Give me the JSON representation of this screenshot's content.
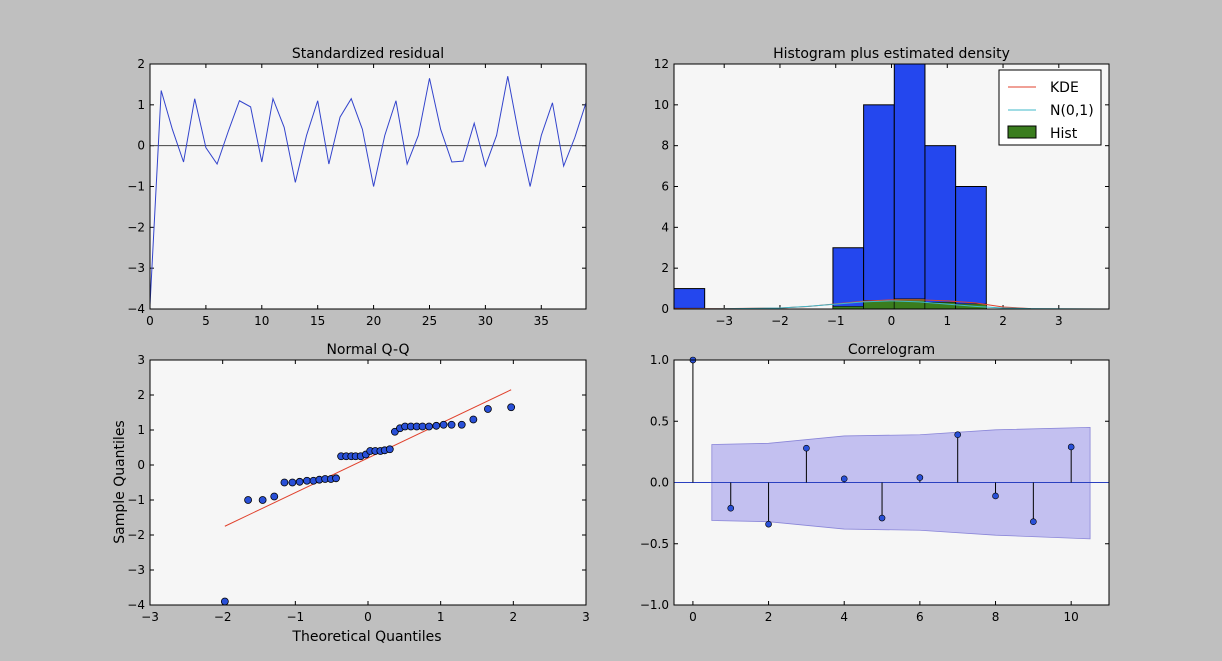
{
  "colors": {
    "figure_bg": "#bfbfbf",
    "axes_bg": "#f6f6f6",
    "residual_line": "#3344cc",
    "hist_bar": "#2447ee",
    "kde": "#e0412c",
    "normal": "#40b8c8",
    "hist_legend": "#3a7d1e",
    "qq_line": "#e0412c",
    "qq_marker": "#2950d8",
    "conf_band": "#c3c0f0",
    "acf_stem": "#000000",
    "acf_marker": "#2950d8",
    "zero_line": "#2a40c0"
  },
  "chart_data": [
    {
      "type": "line",
      "title": "Standardized residual",
      "xlim": [
        0,
        39
      ],
      "ylim": [
        -4,
        2
      ],
      "xticks": [
        0,
        5,
        10,
        15,
        20,
        25,
        30,
        35
      ],
      "xtick_labels": [
        "0",
        "5",
        "10",
        "15",
        "20",
        "25",
        "30",
        "35"
      ],
      "yticks": [
        -4,
        -3,
        -2,
        -1,
        0,
        1,
        2
      ],
      "ytick_labels": [
        "−4",
        "−3",
        "−2",
        "−1",
        "0",
        "1",
        "2"
      ],
      "hline": 0,
      "x": [
        0,
        1,
        2,
        3,
        4,
        5,
        6,
        7,
        8,
        9,
        10,
        11,
        12,
        13,
        14,
        15,
        16,
        17,
        18,
        19,
        20,
        21,
        22,
        23,
        24,
        25,
        26,
        27,
        28,
        29,
        30,
        31,
        32,
        33,
        34,
        35,
        36,
        37,
        38,
        39
      ],
      "y": [
        -3.9,
        1.35,
        0.4,
        -0.4,
        1.15,
        -0.05,
        -0.45,
        0.35,
        1.1,
        0.95,
        -0.4,
        1.15,
        0.45,
        -0.9,
        0.25,
        1.1,
        -0.45,
        0.7,
        1.15,
        0.4,
        -1.0,
        0.25,
        1.1,
        -0.45,
        0.25,
        1.65,
        0.4,
        -0.4,
        -0.38,
        0.55,
        -0.5,
        0.25,
        1.7,
        0.25,
        -1.0,
        0.25,
        1.05,
        -0.5,
        0.2,
        1.05
      ]
    },
    {
      "type": "bar",
      "title": "Histogram plus estimated density",
      "xlim": [
        -3.9,
        3.9
      ],
      "ylim": [
        0,
        12
      ],
      "xticks": [
        -3,
        -2,
        -1,
        0,
        1,
        2,
        3
      ],
      "xtick_labels": [
        "−3",
        "−2",
        "−1",
        "0",
        "1",
        "2",
        "3"
      ],
      "yticks": [
        0,
        2,
        4,
        6,
        8,
        10,
        12
      ],
      "ytick_labels": [
        "0",
        "2",
        "4",
        "6",
        "8",
        "10",
        "12"
      ],
      "bins": [
        {
          "x0": -3.9,
          "x1": -3.35,
          "value": 1
        },
        {
          "x0": -1.05,
          "x1": -0.5,
          "value": 3
        },
        {
          "x0": -0.5,
          "x1": 0.05,
          "value": 10
        },
        {
          "x0": 0.05,
          "x1": 0.6,
          "value": 12
        },
        {
          "x0": 0.6,
          "x1": 1.15,
          "value": 8
        },
        {
          "x0": 1.15,
          "x1": 1.7,
          "value": 6
        }
      ],
      "series": [
        {
          "name": "KDE",
          "x": [
            -3.9,
            -3,
            -2,
            -1.5,
            -1,
            -0.5,
            0,
            0.5,
            1,
            1.5,
            2,
            2.5
          ],
          "y": [
            0.02,
            0.02,
            0.05,
            0.12,
            0.25,
            0.38,
            0.45,
            0.45,
            0.4,
            0.3,
            0.1,
            0.02
          ]
        },
        {
          "name": "N(0,1)",
          "x": [
            -3.9,
            -3,
            -2,
            -1.5,
            -1,
            -0.5,
            0,
            0.5,
            1,
            1.5,
            2,
            2.5,
            3,
            3.9
          ],
          "y": [
            0,
            0.01,
            0.05,
            0.13,
            0.24,
            0.35,
            0.4,
            0.35,
            0.24,
            0.13,
            0.05,
            0.02,
            0.01,
            0
          ]
        }
      ],
      "legend": [
        "KDE",
        "N(0,1)",
        "Hist"
      ],
      "legend_loc": "top-right"
    },
    {
      "type": "scatter",
      "title": "Normal Q-Q",
      "xlabel": "Theoretical Quantiles",
      "ylabel": "Sample Quantiles",
      "xlim": [
        -3,
        3
      ],
      "ylim": [
        -4,
        3
      ],
      "xticks": [
        -3,
        -2,
        -1,
        0,
        1,
        2,
        3
      ],
      "xtick_labels": [
        "−3",
        "−2",
        "−1",
        "0",
        "1",
        "2",
        "3"
      ],
      "yticks": [
        -4,
        -3,
        -2,
        -1,
        0,
        1,
        2,
        3
      ],
      "ytick_labels": [
        "−4",
        "−3",
        "−2",
        "−1",
        "0",
        "1",
        "2",
        "3"
      ],
      "x": [
        -1.97,
        -1.65,
        -1.45,
        -1.29,
        -1.15,
        -1.04,
        -0.94,
        -0.84,
        -0.75,
        -0.67,
        -0.59,
        -0.51,
        -0.44,
        -0.37,
        -0.3,
        -0.23,
        -0.17,
        -0.1,
        -0.03,
        0.03,
        0.1,
        0.17,
        0.23,
        0.3,
        0.37,
        0.44,
        0.51,
        0.59,
        0.67,
        0.75,
        0.84,
        0.94,
        1.04,
        1.15,
        1.29,
        1.45,
        1.65,
        1.97
      ],
      "y": [
        -3.9,
        -1.0,
        -1.0,
        -0.9,
        -0.5,
        -0.5,
        -0.48,
        -0.45,
        -0.45,
        -0.42,
        -0.4,
        -0.4,
        -0.38,
        0.25,
        0.25,
        0.25,
        0.25,
        0.25,
        0.3,
        0.4,
        0.4,
        0.4,
        0.42,
        0.45,
        0.95,
        1.05,
        1.1,
        1.1,
        1.1,
        1.1,
        1.1,
        1.12,
        1.15,
        1.15,
        1.15,
        1.3,
        1.6,
        1.65
      ],
      "fit_line": {
        "x": [
          -1.97,
          1.97
        ],
        "y": [
          -1.75,
          2.15
        ]
      }
    },
    {
      "type": "line",
      "title": "Correlogram",
      "xlim": [
        -0.5,
        11.0
      ],
      "ylim": [
        -1.0,
        1.0
      ],
      "xticks": [
        0,
        2,
        4,
        6,
        8,
        10
      ],
      "xtick_labels": [
        "0",
        "2",
        "4",
        "6",
        "8",
        "10"
      ],
      "yticks": [
        -1.0,
        -0.5,
        0.0,
        0.5,
        1.0
      ],
      "ytick_labels": [
        "−1.0",
        "−0.5",
        "0.0",
        "0.5",
        "1.0"
      ],
      "lags": [
        0,
        1,
        2,
        3,
        4,
        5,
        6,
        7,
        8,
        9,
        10
      ],
      "values": [
        1.0,
        -0.21,
        -0.34,
        0.28,
        0.03,
        -0.29,
        0.04,
        0.39,
        -0.11,
        -0.32,
        0.29
      ],
      "conf_band": {
        "x": [
          0.5,
          2,
          4,
          6,
          8,
          10.5
        ],
        "upper": [
          0.31,
          0.32,
          0.38,
          0.39,
          0.43,
          0.45
        ],
        "lower": [
          -0.31,
          -0.32,
          -0.38,
          -0.39,
          -0.43,
          -0.46
        ]
      }
    }
  ]
}
